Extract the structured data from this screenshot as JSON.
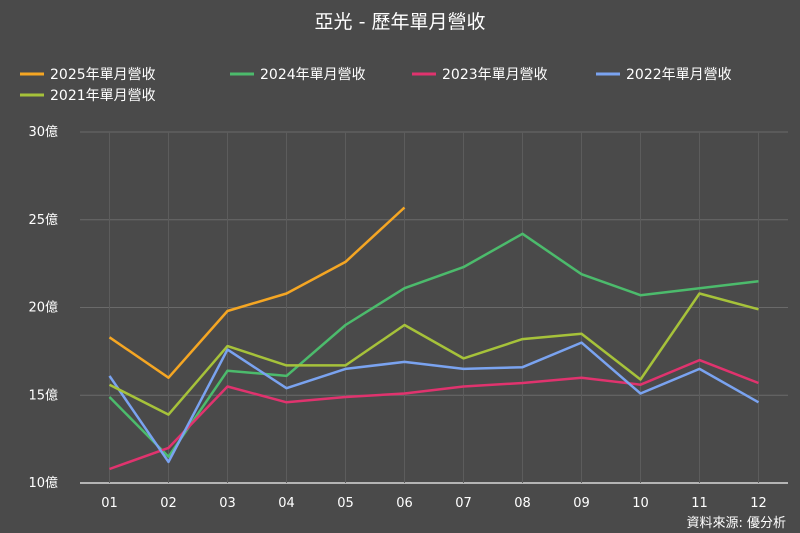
{
  "chart_data": {
    "type": "line",
    "title": "亞光 - 歷年單月營收",
    "source": "資料來源: 優分析",
    "categories": [
      "01",
      "02",
      "03",
      "04",
      "05",
      "06",
      "07",
      "08",
      "09",
      "10",
      "11",
      "12"
    ],
    "yticks": [
      "10億",
      "15億",
      "20億",
      "25億",
      "30億"
    ],
    "ylim": [
      10,
      30
    ],
    "grid": "horizontal",
    "legend_position": "top-left",
    "series": [
      {
        "name": "2025年單月營收",
        "color": "#f5a623",
        "values": [
          18.3,
          16.0,
          19.8,
          20.8,
          22.6,
          25.7,
          null,
          null,
          null,
          null,
          null,
          null
        ]
      },
      {
        "name": "2024年單月營收",
        "color": "#4cbb6c",
        "values": [
          14.9,
          11.5,
          16.4,
          16.1,
          19.0,
          21.1,
          22.3,
          24.2,
          21.9,
          20.7,
          21.1,
          21.5
        ]
      },
      {
        "name": "2023年單月營收",
        "color": "#e0336e",
        "values": [
          10.8,
          12.0,
          15.5,
          14.6,
          14.9,
          15.1,
          15.5,
          15.7,
          16.0,
          15.6,
          17.0,
          15.7
        ]
      },
      {
        "name": "2022年單月營收",
        "color": "#7aa3f0",
        "values": [
          16.1,
          11.2,
          17.6,
          15.4,
          16.5,
          16.9,
          16.5,
          16.6,
          18.0,
          15.1,
          16.5,
          14.6
        ]
      },
      {
        "name": "2021年單月營收",
        "color": "#a6c23a",
        "values": [
          15.6,
          13.9,
          17.8,
          16.7,
          16.7,
          19.0,
          17.1,
          18.2,
          18.5,
          15.9,
          20.8,
          19.9
        ]
      }
    ]
  }
}
